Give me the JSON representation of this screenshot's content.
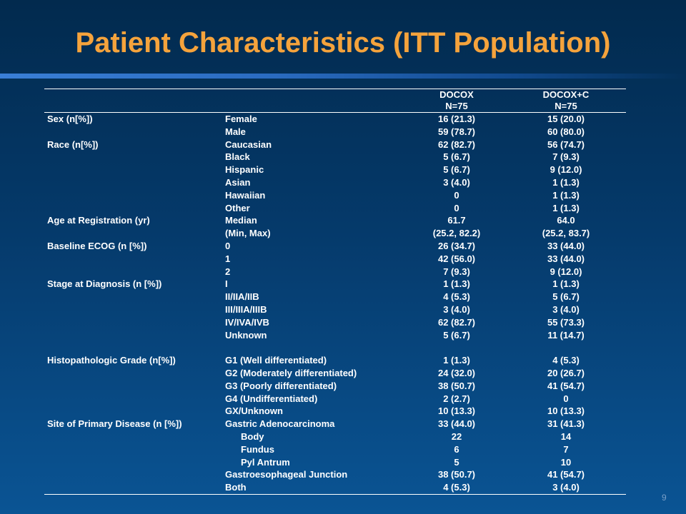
{
  "title": "Patient Characteristics (ITT Population)",
  "page_number": "9",
  "table": {
    "columns": [
      {
        "name": "DOCOX",
        "n": "N=75"
      },
      {
        "name": "DOCOX+C",
        "n": "N=75"
      }
    ],
    "rows": [
      {
        "category": "Sex (n[%])",
        "item": "Female",
        "docox": "16 (21.3)",
        "docoxc": "15 (20.0)",
        "indent": false
      },
      {
        "category": "",
        "item": "Male",
        "docox": "59 (78.7)",
        "docoxc": "60 (80.0)",
        "indent": false
      },
      {
        "category": "Race (n[%])",
        "item": "Caucasian",
        "docox": "62 (82.7)",
        "docoxc": "56 (74.7)",
        "indent": false
      },
      {
        "category": "",
        "item": "Black",
        "docox": "5 (6.7)",
        "docoxc": "7 (9.3)",
        "indent": false
      },
      {
        "category": "",
        "item": "Hispanic",
        "docox": "5 (6.7)",
        "docoxc": "9 (12.0)",
        "indent": false
      },
      {
        "category": "",
        "item": "Asian",
        "docox": "3 (4.0)",
        "docoxc": "1 (1.3)",
        "indent": false
      },
      {
        "category": "",
        "item": "Hawaiian",
        "docox": "0",
        "docoxc": "1 (1.3)",
        "indent": false
      },
      {
        "category": "",
        "item": "Other",
        "docox": "0",
        "docoxc": "1 (1.3)",
        "indent": false
      },
      {
        "category": "Age at Registration (yr)",
        "item": "Median",
        "docox": "61.7",
        "docoxc": "64.0",
        "indent": false
      },
      {
        "category": "",
        "item": "(Min, Max)",
        "docox": "(25.2, 82.2)",
        "docoxc": "(25.2, 83.7)",
        "indent": false
      },
      {
        "category": "Baseline ECOG (n [%])",
        "item": "0",
        "docox": "26 (34.7)",
        "docoxc": "33 (44.0)",
        "indent": false
      },
      {
        "category": "",
        "item": "1",
        "docox": "42 (56.0)",
        "docoxc": "33 (44.0)",
        "indent": false
      },
      {
        "category": "",
        "item": "2",
        "docox": "7 (9.3)",
        "docoxc": "9 (12.0)",
        "indent": false
      },
      {
        "category": "Stage at Diagnosis (n [%])",
        "item": "I",
        "docox": "1 (1.3)",
        "docoxc": "1 (1.3)",
        "indent": false
      },
      {
        "category": "",
        "item": "II/IIA/IIB",
        "docox": "4 (5.3)",
        "docoxc": "5 (6.7)",
        "indent": false
      },
      {
        "category": "",
        "item": "III/IIIA/IIIB",
        "docox": "3 (4.0)",
        "docoxc": "3 (4.0)",
        "indent": false
      },
      {
        "category": "",
        "item": "IV/IVA/IVB",
        "docox": "62 (82.7)",
        "docoxc": "55 (73.3)",
        "indent": false
      },
      {
        "category": "",
        "item": "Unknown",
        "docox": "5 (6.7)",
        "docoxc": "11 (14.7)",
        "indent": false
      },
      {
        "category": "",
        "item": "",
        "docox": "",
        "docoxc": "",
        "indent": false
      },
      {
        "category": "Histopathologic Grade (n[%])",
        "item": "G1 (Well differentiated)",
        "docox": "1 (1.3)",
        "docoxc": "4 (5.3)",
        "indent": false
      },
      {
        "category": "",
        "item": "G2 (Moderately differentiated)",
        "docox": "24 (32.0)",
        "docoxc": "20 (26.7)",
        "indent": false
      },
      {
        "category": "",
        "item": "G3 (Poorly differentiated)",
        "docox": "38 (50.7)",
        "docoxc": "41 (54.7)",
        "indent": false
      },
      {
        "category": "",
        "item": "G4 (Undifferentiated)",
        "docox": "2 (2.7)",
        "docoxc": "0",
        "indent": false
      },
      {
        "category": "",
        "item": "GX/Unknown",
        "docox": "10 (13.3)",
        "docoxc": "10 (13.3)",
        "indent": false
      },
      {
        "category": "Site of Primary Disease (n [%])",
        "item": "Gastric Adenocarcinoma",
        "docox": "33 (44.0)",
        "docoxc": "31 (41.3)",
        "indent": false
      },
      {
        "category": "",
        "item": "Body",
        "docox": "22",
        "docoxc": "14",
        "indent": true
      },
      {
        "category": "",
        "item": "Fundus",
        "docox": "6",
        "docoxc": "7",
        "indent": true
      },
      {
        "category": "",
        "item": "Pyl Antrum",
        "docox": "5",
        "docoxc": "10",
        "indent": true
      },
      {
        "category": "",
        "item": "Gastroesophageal Junction",
        "docox": "38 (50.7)",
        "docoxc": "41 (54.7)",
        "indent": false
      },
      {
        "category": "",
        "item": "Both",
        "docox": "4 (5.3)",
        "docoxc": "3 (4.0)",
        "indent": false
      }
    ]
  },
  "colors": {
    "title": "#f5a33c",
    "text": "#ffffff",
    "background": "#053a6b"
  }
}
